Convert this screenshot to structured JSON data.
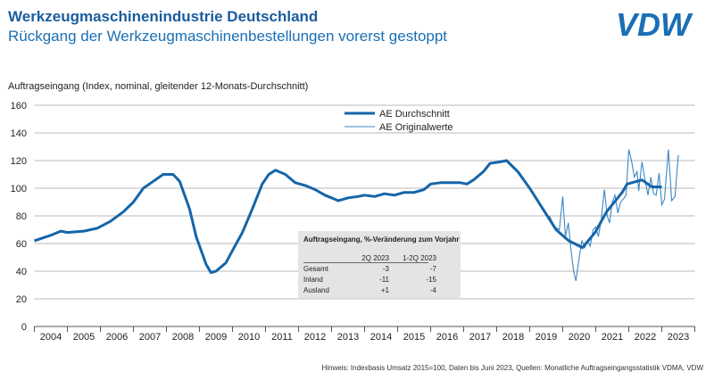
{
  "header": {
    "title": "Werkzeugmaschinenindustrie Deutschland",
    "subtitle": "Rückgang der Werkzeugmaschinenbestellungen vorerst gestoppt",
    "logo": "VDW"
  },
  "footer": "Hinweis: Indexbasis Umsatz 2015=100, Daten bis Juni 2023, Quellen: Monatliche Auftragseingangsstatistik VDMA, VDW",
  "colors": {
    "avg": "#1565a8",
    "orig": "#3b86c4",
    "grid": "#c8c8c8",
    "title": "#1a5c9e"
  },
  "table": {
    "title": "Auftragseingang, %-Veränderung zum Vorjahr",
    "cols": [
      "2Q 2023",
      "1-2Q 2023"
    ],
    "rows": [
      {
        "label": "Gesamt",
        "v1": "-3",
        "v2": "-7"
      },
      {
        "label": "Inland",
        "v1": "-11",
        "v2": "-15"
      },
      {
        "label": "Ausland",
        "v1": "+1",
        "v2": "-4"
      }
    ]
  },
  "chart_data": {
    "type": "line",
    "ylabel": "Auftragseingang (Index, nominal, gleitender 12-Monats-Durchschnitt)",
    "ylim": [
      0,
      160
    ],
    "yticks": [
      0,
      20,
      40,
      60,
      80,
      100,
      120,
      140,
      160
    ],
    "xlim": [
      2004,
      2024
    ],
    "xticks": [
      "2004",
      "2005",
      "2006",
      "2007",
      "2008",
      "2009",
      "2010",
      "2011",
      "2012",
      "2013",
      "2014",
      "2015",
      "2016",
      "2017",
      "2018",
      "2019",
      "2020",
      "2021",
      "2022",
      "2023"
    ],
    "grid": true,
    "legend": "top-center",
    "series": [
      {
        "name": "AE Durchschnitt",
        "x": [
          2004.0,
          2004.5,
          2004.8,
          2005.0,
          2005.5,
          2005.9,
          2006.3,
          2006.7,
          2007.0,
          2007.3,
          2007.6,
          2007.9,
          2008.2,
          2008.4,
          2008.7,
          2008.9,
          2009.2,
          2009.35,
          2009.5,
          2009.8,
          2010.0,
          2010.3,
          2010.6,
          2010.9,
          2011.1,
          2011.3,
          2011.6,
          2011.9,
          2012.2,
          2012.5,
          2012.8,
          2013.0,
          2013.2,
          2013.5,
          2013.8,
          2014.0,
          2014.3,
          2014.6,
          2014.9,
          2015.2,
          2015.5,
          2015.8,
          2016.0,
          2016.3,
          2016.6,
          2016.9,
          2017.1,
          2017.3,
          2017.6,
          2017.8,
          2018.1,
          2018.3,
          2018.64,
          2019.0,
          2019.4,
          2019.8,
          2020.18,
          2020.6,
          2020.98,
          2021.33,
          2021.8,
          2021.95,
          2022.4,
          2022.7,
          2023.0
        ],
        "y": [
          62,
          66,
          69,
          68,
          69,
          71,
          76,
          83,
          90,
          100,
          105,
          110,
          110,
          105,
          85,
          65,
          45,
          39,
          40,
          46,
          55,
          68,
          85,
          103,
          110,
          113,
          110,
          104,
          102,
          99,
          95,
          93,
          91,
          93,
          94,
          95,
          94,
          96,
          95,
          97,
          97,
          99,
          103,
          104,
          104,
          104,
          103,
          106,
          112,
          118,
          119,
          120,
          112,
          100,
          85,
          70,
          62,
          57,
          68,
          83,
          97,
          103,
          106,
          101,
          101
        ]
      },
      {
        "name": "AE Originalwerte",
        "x": [
          2019.6,
          2019.75,
          2019.9,
          2020.0,
          2020.08,
          2020.17,
          2020.25,
          2020.33,
          2020.4,
          2020.5,
          2020.58,
          2020.67,
          2020.75,
          2020.83,
          2020.92,
          2021.0,
          2021.08,
          2021.17,
          2021.26,
          2021.35,
          2021.42,
          2021.5,
          2021.58,
          2021.67,
          2021.75,
          2021.83,
          2021.92,
          2022.0,
          2022.08,
          2022.17,
          2022.25,
          2022.3,
          2022.4,
          2022.5,
          2022.58,
          2022.67,
          2022.75,
          2022.83,
          2022.92,
          2023.0,
          2023.08,
          2023.2,
          2023.3,
          2023.4,
          2023.5
        ],
        "y": [
          80,
          72,
          70,
          94,
          65,
          75,
          55,
          40,
          33,
          50,
          62,
          57,
          62,
          58,
          70,
          72,
          65,
          78,
          99,
          80,
          75,
          90,
          95,
          82,
          90,
          92,
          95,
          128,
          120,
          108,
          112,
          98,
          119,
          105,
          95,
          108,
          96,
          95,
          111,
          88,
          92,
          128,
          91,
          94,
          124
        ]
      }
    ]
  }
}
